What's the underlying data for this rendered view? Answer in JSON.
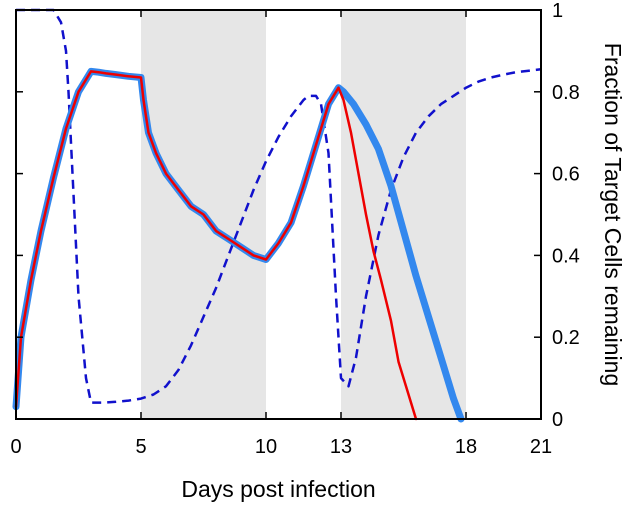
{
  "chart_data": {
    "type": "line",
    "xlabel": "Days post infection",
    "ylabel_right": "Fraction of Target Cells remaining",
    "xlim": [
      0,
      21
    ],
    "ylim": [
      0,
      1
    ],
    "xticks": [
      0,
      5,
      10,
      13,
      18,
      21
    ],
    "yticks": [
      0,
      0.2,
      0.4,
      0.6,
      0.8,
      1
    ],
    "ytick_labels": [
      "0",
      "0.2",
      "0.4",
      "0.6",
      "0.8",
      "1"
    ],
    "y_axis_side": "right",
    "grid": false,
    "shaded_intervals": [
      [
        5,
        10
      ],
      [
        13,
        18
      ]
    ],
    "colors": {
      "shade": "#e6e6e6",
      "thick_line": "#3388ee",
      "thin_line": "#ee0000",
      "dashed_line": "#1111cc"
    },
    "series": [
      {
        "style": "thick-solid",
        "color": "#3388ee",
        "x": [
          0,
          0.2,
          0.6,
          1.0,
          1.5,
          2.0,
          2.5,
          3.0,
          3.3,
          3.6,
          4.0,
          4.5,
          5.0,
          5.1,
          5.3,
          5.6,
          6.0,
          6.5,
          7.0,
          7.5,
          8.0,
          8.5,
          9.0,
          9.5,
          10.0,
          10.5,
          11.0,
          11.5,
          12.0,
          12.5,
          12.9,
          13.1,
          13.5,
          14.0,
          14.5,
          15.0,
          15.5,
          16.0,
          16.5,
          17.0,
          17.5,
          17.8
        ],
        "y": [
          0.03,
          0.2,
          0.34,
          0.46,
          0.59,
          0.71,
          0.8,
          0.85,
          0.848,
          0.845,
          0.842,
          0.838,
          0.835,
          0.78,
          0.7,
          0.65,
          0.6,
          0.56,
          0.52,
          0.5,
          0.46,
          0.44,
          0.42,
          0.4,
          0.39,
          0.43,
          0.48,
          0.57,
          0.67,
          0.77,
          0.81,
          0.8,
          0.77,
          0.72,
          0.66,
          0.57,
          0.46,
          0.35,
          0.25,
          0.15,
          0.05,
          0.0
        ]
      },
      {
        "style": "thin-solid",
        "color": "#ee0000",
        "x": [
          0,
          0.2,
          0.6,
          1.0,
          1.5,
          2.0,
          2.5,
          3.0,
          3.3,
          3.6,
          4.0,
          4.5,
          5.0,
          5.1,
          5.3,
          5.6,
          6.0,
          6.5,
          7.0,
          7.5,
          8.0,
          8.5,
          9.0,
          9.5,
          10.0,
          10.5,
          11.0,
          11.5,
          12.0,
          12.5,
          12.9,
          13.1,
          13.4,
          13.7,
          14.0,
          14.3,
          14.6,
          15.0,
          15.3,
          15.6,
          16.0
        ],
        "y": [
          0.03,
          0.2,
          0.34,
          0.46,
          0.59,
          0.71,
          0.8,
          0.85,
          0.848,
          0.845,
          0.842,
          0.838,
          0.835,
          0.78,
          0.7,
          0.65,
          0.6,
          0.56,
          0.52,
          0.5,
          0.46,
          0.44,
          0.42,
          0.4,
          0.39,
          0.43,
          0.48,
          0.57,
          0.67,
          0.77,
          0.81,
          0.78,
          0.7,
          0.6,
          0.5,
          0.41,
          0.34,
          0.24,
          0.14,
          0.08,
          0.0
        ]
      },
      {
        "style": "dashed",
        "color": "#1111cc",
        "x": [
          0,
          0.5,
          1.0,
          1.5,
          1.8,
          2.0,
          2.1,
          2.3,
          2.5,
          2.8,
          3.0,
          3.5,
          4.0,
          4.5,
          5.0,
          5.5,
          6.0,
          6.5,
          7.0,
          7.5,
          8.0,
          8.5,
          9.0,
          9.5,
          10.0,
          10.5,
          11.0,
          11.5,
          11.7,
          12.0,
          12.2,
          12.5,
          12.8,
          13.0,
          13.3,
          13.6,
          14.0,
          14.5,
          15.0,
          15.5,
          16.0,
          16.5,
          17.0,
          17.5,
          18.0,
          18.5,
          19.0,
          19.5,
          20.0,
          21.0
        ],
        "y": [
          1.0,
          1.0,
          1.0,
          1.0,
          0.97,
          0.9,
          0.8,
          0.55,
          0.3,
          0.1,
          0.04,
          0.04,
          0.042,
          0.045,
          0.05,
          0.06,
          0.08,
          0.12,
          0.18,
          0.25,
          0.32,
          0.4,
          0.48,
          0.56,
          0.63,
          0.69,
          0.74,
          0.78,
          0.79,
          0.79,
          0.77,
          0.65,
          0.3,
          0.1,
          0.08,
          0.15,
          0.3,
          0.45,
          0.56,
          0.64,
          0.7,
          0.74,
          0.77,
          0.79,
          0.81,
          0.825,
          0.835,
          0.842,
          0.848,
          0.855
        ]
      }
    ]
  }
}
